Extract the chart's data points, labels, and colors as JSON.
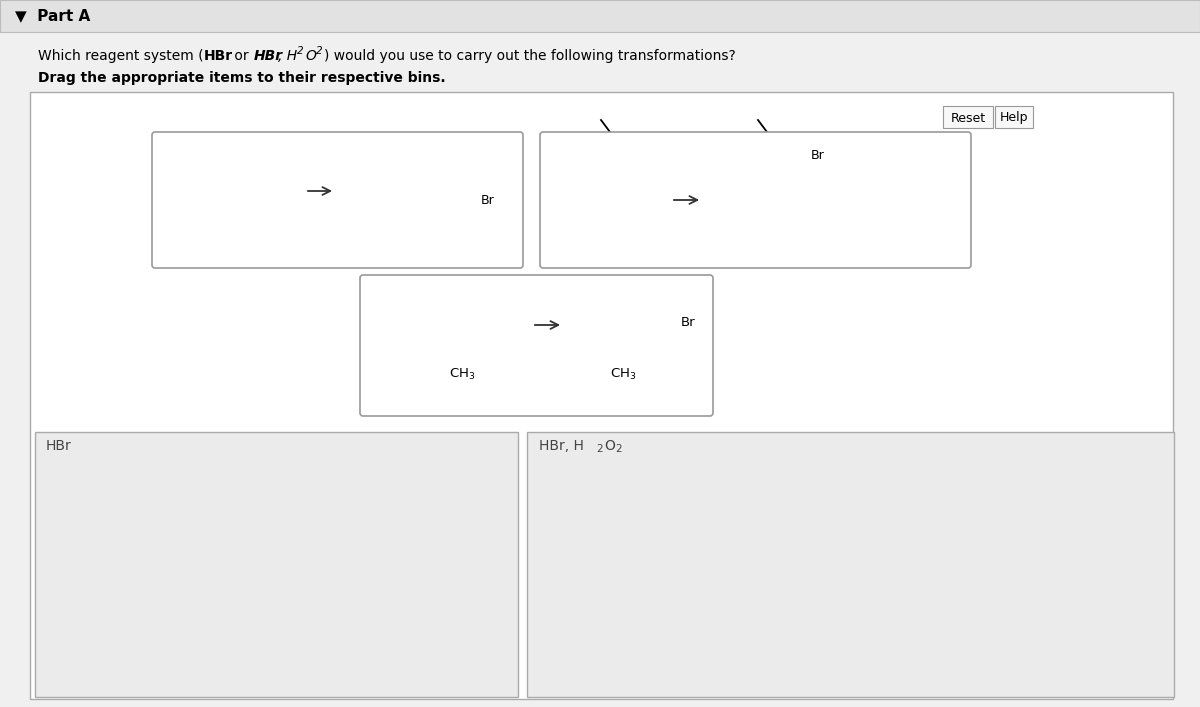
{
  "title": "Part A",
  "question_plain": "Which reagent system (",
  "question_hbr1": "HBr",
  "question_or": " or ",
  "question_hbr2": "HBr",
  "question_h2o2": ", H₂O₂",
  "question_end": ") would you use to carry out the following transformations?",
  "instruction": "Drag the appropriate items to their respective bins.",
  "bin1_label": "HBr",
  "bin2_label": "HBr, H₂O₂",
  "reset_btn": "Reset",
  "help_btn": "Help",
  "bg_color": "#f0f0f0",
  "panel_bg": "#ffffff",
  "bin_bg": "#ebebeb",
  "text_color": "#000000",
  "header_bg": "#e2e2e2",
  "card_color": "#ffffff",
  "card_border": "#999999",
  "arrow_color": "#333333"
}
